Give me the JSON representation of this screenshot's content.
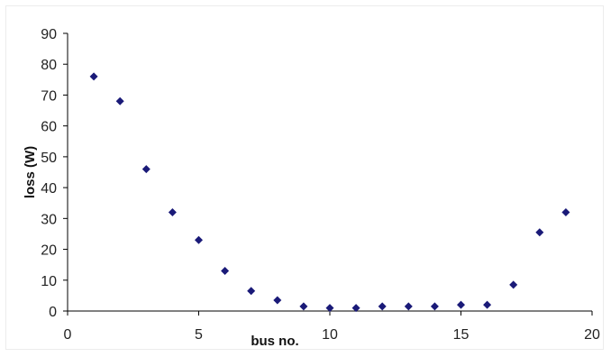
{
  "chart_data": {
    "type": "scatter",
    "title": "",
    "xlabel": "bus no.",
    "ylabel": "loss (W)",
    "xlim": [
      0,
      20
    ],
    "ylim": [
      0,
      90
    ],
    "xticks": [
      "0",
      "5",
      "10",
      "15",
      "20"
    ],
    "yticks": [
      "0",
      "10",
      "20",
      "30",
      "40",
      "50",
      "60",
      "70",
      "80",
      "90"
    ],
    "grid": false,
    "legend": "none",
    "marker": "diamond",
    "marker_color": "#1a1a78",
    "series": [
      {
        "x": [
          1,
          2,
          3,
          4,
          5,
          6,
          7,
          8,
          9,
          10,
          11,
          12,
          13,
          14,
          15,
          16,
          17,
          18,
          19
        ],
        "y": [
          76,
          68,
          46,
          32,
          23,
          13,
          6.5,
          3.5,
          1.5,
          1,
          1,
          1.5,
          1.5,
          1.5,
          2,
          2,
          8.5,
          25.5,
          32
        ]
      }
    ]
  }
}
